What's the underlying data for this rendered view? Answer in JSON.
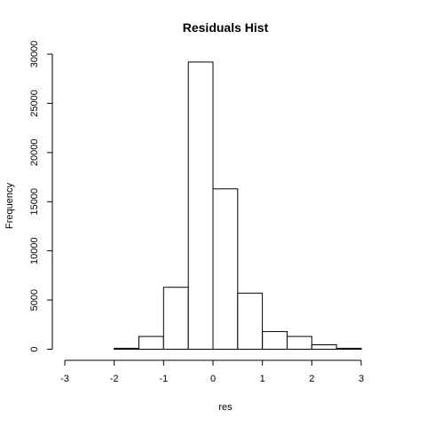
{
  "chart_data": {
    "type": "bar",
    "title": "Residuals Hist",
    "xlabel": "res",
    "ylabel": "Frequency",
    "bin_width": 0.5,
    "bins": [
      {
        "x0": -2.0,
        "x1": -1.5,
        "count": 100
      },
      {
        "x0": -1.5,
        "x1": -1.0,
        "count": 1300
      },
      {
        "x0": -1.0,
        "x1": -0.5,
        "count": 6300
      },
      {
        "x0": -0.5,
        "x1": 0.0,
        "count": 29200
      },
      {
        "x0": 0.0,
        "x1": 0.5,
        "count": 16300
      },
      {
        "x0": 0.5,
        "x1": 1.0,
        "count": 5700
      },
      {
        "x0": 1.0,
        "x1": 1.5,
        "count": 1800
      },
      {
        "x0": 1.5,
        "x1": 2.0,
        "count": 1300
      },
      {
        "x0": 2.0,
        "x1": 2.5,
        "count": 450
      },
      {
        "x0": 2.5,
        "x1": 3.0,
        "count": 100
      }
    ],
    "xlim": [
      -3,
      3.5
    ],
    "ylim": [
      0,
      30000
    ],
    "x_ticks": [
      -3,
      -2,
      -1,
      0,
      1,
      2,
      3
    ],
    "y_ticks": [
      0,
      5000,
      10000,
      15000,
      20000,
      25000,
      30000
    ],
    "grid": false
  }
}
